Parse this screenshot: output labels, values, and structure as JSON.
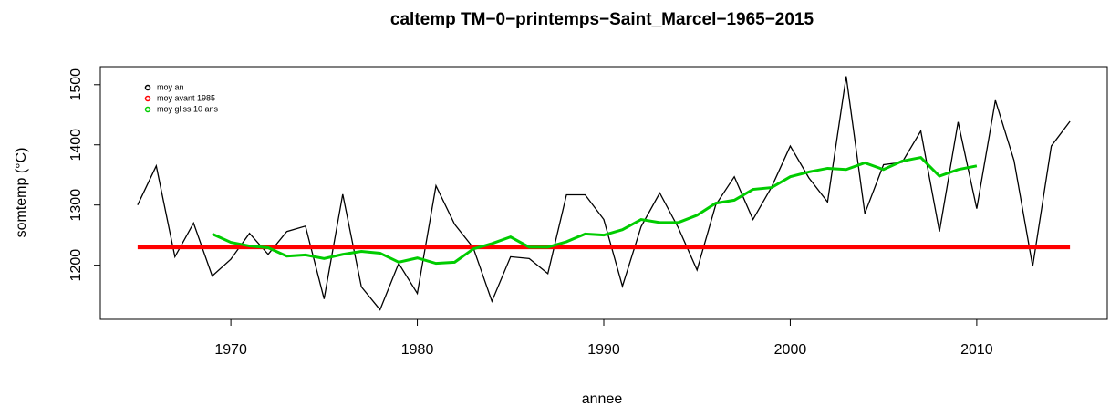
{
  "chart_data": {
    "type": "line",
    "title": "caltemp TM−0−printemps−Saint_Marcel−1965−2015",
    "x_label": "annee",
    "y_label": "somtemp (°C)",
    "xlim": [
      1963,
      2017
    ],
    "ylim": [
      1110,
      1530
    ],
    "xticks": [
      1970,
      1980,
      1990,
      2000,
      2010
    ],
    "yticks": [
      1200,
      1300,
      1400,
      1500
    ],
    "legend": "top-left",
    "series": [
      {
        "name": "moy an",
        "color": "#000000",
        "width": 1.3,
        "x": [
          1965,
          1966,
          1967,
          1968,
          1969,
          1970,
          1971,
          1972,
          1973,
          1974,
          1975,
          1976,
          1977,
          1978,
          1979,
          1980,
          1981,
          1982,
          1983,
          1984,
          1985,
          1986,
          1987,
          1988,
          1989,
          1990,
          1991,
          1992,
          1993,
          1994,
          1995,
          1996,
          1997,
          1998,
          1999,
          2000,
          2001,
          2002,
          2003,
          2004,
          2005,
          2006,
          2007,
          2008,
          2009,
          2010,
          2011,
          2012,
          2013,
          2014,
          2015
        ],
        "values": [
          1300,
          1365,
          1214,
          1270,
          1182,
          1210,
          1253,
          1218,
          1256,
          1265,
          1144,
          1318,
          1164,
          1126,
          1203,
          1153,
          1332,
          1268,
          1229,
          1140,
          1214,
          1211,
          1186,
          1317,
          1317,
          1276,
          1165,
          1264,
          1320,
          1262,
          1192,
          1300,
          1347,
          1276,
          1330,
          1398,
          1345,
          1305,
          1514,
          1286,
          1367,
          1371,
          1423,
          1256,
          1438,
          1294,
          1474,
          1374,
          1198,
          1398,
          1439
        ]
      },
      {
        "name": "moy avant 1985",
        "color": "#ff0000",
        "width": 4.5,
        "x": [
          1965,
          2015
        ],
        "values": [
          1230,
          1230
        ]
      },
      {
        "name": "moy gliss 10 ans",
        "color": "#00cc00",
        "width": 3,
        "x": [
          1969,
          1970,
          1971,
          1972,
          1973,
          1974,
          1975,
          1976,
          1977,
          1978,
          1979,
          1980,
          1981,
          1982,
          1983,
          1984,
          1985,
          1986,
          1987,
          1988,
          1989,
          1990,
          1991,
          1992,
          1993,
          1994,
          1995,
          1996,
          1997,
          1998,
          1999,
          2000,
          2001,
          2002,
          2003,
          2004,
          2005,
          2006,
          2007,
          2008,
          2009,
          2010
        ],
        "values": [
          1252,
          1238,
          1232,
          1229,
          1215,
          1217,
          1211,
          1218,
          1223,
          1220,
          1205,
          1212,
          1203,
          1205,
          1227,
          1236,
          1247,
          1230,
          1230,
          1239,
          1252,
          1250,
          1259,
          1276,
          1271,
          1271,
          1283,
          1303,
          1308,
          1326,
          1329,
          1347,
          1355,
          1361,
          1359,
          1370,
          1359,
          1373,
          1379,
          1348,
          1359,
          1365
        ]
      }
    ]
  }
}
